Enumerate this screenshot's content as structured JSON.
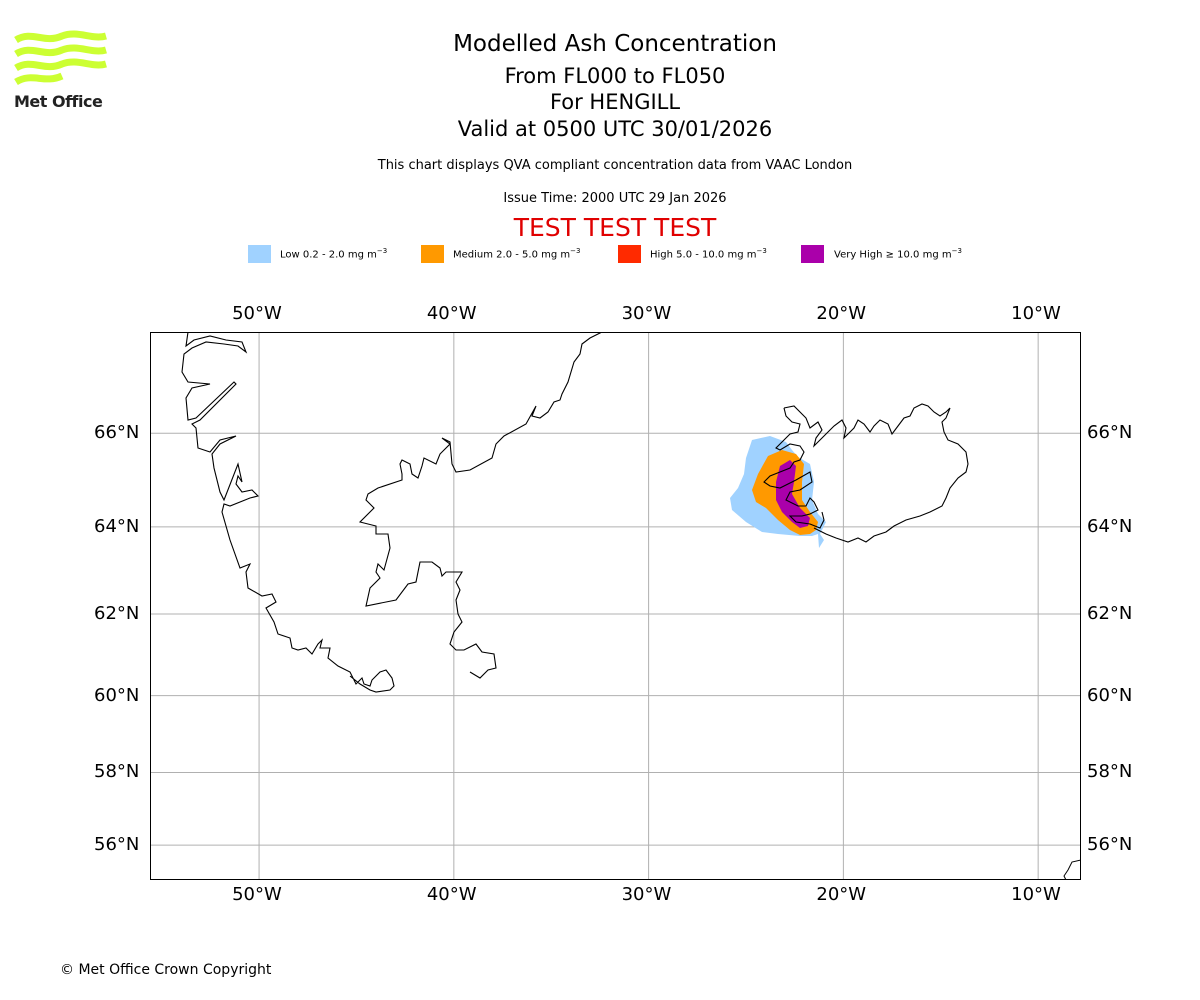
{
  "logo": {
    "text": "Met Office",
    "color": "#ccff33"
  },
  "header": {
    "title": "Modelled Ash Concentration",
    "levels": "From FL000 to FL050",
    "volcano": "For HENGILL",
    "valid": "Valid at 0500 UTC 30/01/2026",
    "description": "This chart displays QVA compliant concentration data from VAAC London",
    "issue_time": "Issue Time: 2000 UTC 29 Jan 2026",
    "test_banner": "TEST TEST TEST"
  },
  "legend": [
    {
      "label": "Low 0.2 - 2.0 mg m",
      "sup": "−3",
      "color": "#a0d2ff"
    },
    {
      "label": "Medium 2.0 - 5.0 mg m",
      "sup": "−3",
      "color": "#ff9900"
    },
    {
      "label": "High 5.0 - 10.0 mg m",
      "sup": "−3",
      "color": "#ff2a00"
    },
    {
      "label": "Very High  ≥  10.0 mg m",
      "sup": "−3",
      "color": "#aa00aa"
    }
  ],
  "chart_data": {
    "type": "map",
    "title": "Modelled Ash Concentration",
    "projection": "latitude-longitude (Mercator-like)",
    "lon_range": [
      -55.6,
      -7.8
    ],
    "lat_range": [
      55.0,
      68.0
    ],
    "grid": true,
    "lon_ticks": [
      "50°W",
      "40°W",
      "30°W",
      "20°W",
      "10°W"
    ],
    "lon_tick_values": [
      -50,
      -40,
      -30,
      -20,
      -10
    ],
    "lat_ticks": [
      "66°N",
      "64°N",
      "62°N",
      "60°N",
      "58°N",
      "56°N"
    ],
    "lat_tick_values": [
      66,
      64,
      62,
      60,
      58,
      56
    ],
    "ash_plume": {
      "source": "HENGILL",
      "region": "South-west Iceland",
      "levels": [
        "Low",
        "Medium",
        "High",
        "Very High"
      ]
    }
  },
  "footer": {
    "copyright": "© Met Office Crown Copyright"
  }
}
